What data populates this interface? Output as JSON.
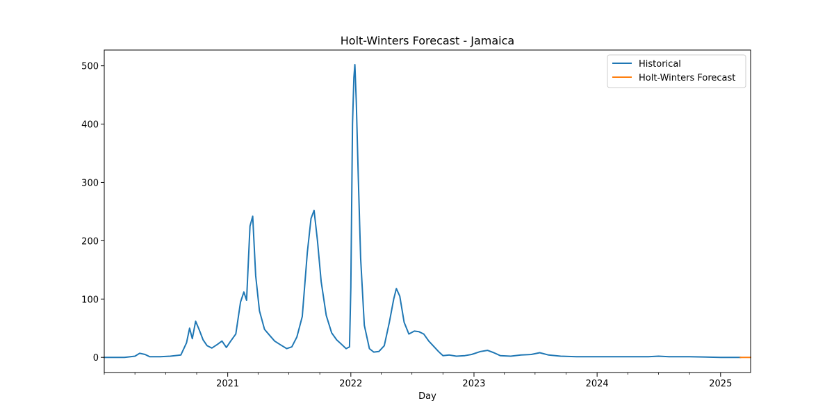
{
  "chart_data": {
    "type": "line",
    "title": "Holt-Winters Forecast - Jamaica",
    "xlabel": "Day",
    "ylabel": "",
    "xlim": [
      "2020-01-01",
      "2025-03-31"
    ],
    "ylim": [
      -26,
      527
    ],
    "x_ticks": [
      {
        "label": "2021",
        "date": "2021-01-01"
      },
      {
        "label": "2022",
        "date": "2022-01-01"
      },
      {
        "label": "2023",
        "date": "2023-01-01"
      },
      {
        "label": "2024",
        "date": "2024-01-01"
      },
      {
        "label": "2025",
        "date": "2025-01-01"
      }
    ],
    "y_ticks": [
      0,
      100,
      200,
      300,
      400,
      500
    ],
    "grid": false,
    "legend_position": "top-right",
    "series": [
      {
        "name": "Historical",
        "color": "#1f77b4",
        "points": [
          [
            "2020-01-01",
            0
          ],
          [
            "2020-02-01",
            0
          ],
          [
            "2020-03-01",
            0
          ],
          [
            "2020-04-01",
            2
          ],
          [
            "2020-04-15",
            7
          ],
          [
            "2020-05-01",
            5
          ],
          [
            "2020-05-15",
            1
          ],
          [
            "2020-06-15",
            1
          ],
          [
            "2020-07-15",
            2
          ],
          [
            "2020-08-15",
            4
          ],
          [
            "2020-09-01",
            25
          ],
          [
            "2020-09-10",
            50
          ],
          [
            "2020-09-18",
            32
          ],
          [
            "2020-09-28",
            62
          ],
          [
            "2020-10-08",
            48
          ],
          [
            "2020-10-20",
            30
          ],
          [
            "2020-11-01",
            20
          ],
          [
            "2020-11-15",
            16
          ],
          [
            "2020-12-01",
            22
          ],
          [
            "2020-12-15",
            28
          ],
          [
            "2020-12-28",
            17
          ],
          [
            "2021-01-10",
            28
          ],
          [
            "2021-01-25",
            40
          ],
          [
            "2021-02-08",
            95
          ],
          [
            "2021-02-18",
            112
          ],
          [
            "2021-02-26",
            98
          ],
          [
            "2021-03-08",
            225
          ],
          [
            "2021-03-16",
            242
          ],
          [
            "2021-03-25",
            140
          ],
          [
            "2021-04-05",
            80
          ],
          [
            "2021-04-20",
            48
          ],
          [
            "2021-05-05",
            38
          ],
          [
            "2021-05-20",
            28
          ],
          [
            "2021-06-05",
            22
          ],
          [
            "2021-06-25",
            15
          ],
          [
            "2021-07-10",
            18
          ],
          [
            "2021-07-25",
            35
          ],
          [
            "2021-08-10",
            70
          ],
          [
            "2021-08-25",
            180
          ],
          [
            "2021-09-05",
            238
          ],
          [
            "2021-09-14",
            252
          ],
          [
            "2021-09-24",
            200
          ],
          [
            "2021-10-05",
            130
          ],
          [
            "2021-10-20",
            72
          ],
          [
            "2021-11-05",
            42
          ],
          [
            "2021-11-20",
            30
          ],
          [
            "2021-12-05",
            22
          ],
          [
            "2021-12-18",
            15
          ],
          [
            "2021-12-28",
            18
          ],
          [
            "2022-01-01",
            120
          ],
          [
            "2022-01-06",
            400
          ],
          [
            "2022-01-10",
            480
          ],
          [
            "2022-01-13",
            502
          ],
          [
            "2022-01-17",
            440
          ],
          [
            "2022-01-23",
            310
          ],
          [
            "2022-01-30",
            170
          ],
          [
            "2022-02-10",
            55
          ],
          [
            "2022-02-25",
            15
          ],
          [
            "2022-03-10",
            9
          ],
          [
            "2022-03-25",
            10
          ],
          [
            "2022-04-10",
            20
          ],
          [
            "2022-04-25",
            60
          ],
          [
            "2022-05-08",
            100
          ],
          [
            "2022-05-16",
            118
          ],
          [
            "2022-05-26",
            105
          ],
          [
            "2022-06-08",
            60
          ],
          [
            "2022-06-22",
            40
          ],
          [
            "2022-07-08",
            45
          ],
          [
            "2022-07-22",
            44
          ],
          [
            "2022-08-05",
            40
          ],
          [
            "2022-08-20",
            28
          ],
          [
            "2022-09-05",
            18
          ],
          [
            "2022-09-18",
            10
          ],
          [
            "2022-10-01",
            3
          ],
          [
            "2022-10-20",
            4
          ],
          [
            "2022-11-10",
            2
          ],
          [
            "2022-12-05",
            3
          ],
          [
            "2022-12-25",
            5
          ],
          [
            "2023-01-20",
            10
          ],
          [
            "2023-02-10",
            12
          ],
          [
            "2023-03-01",
            8
          ],
          [
            "2023-03-20",
            3
          ],
          [
            "2023-04-20",
            2
          ],
          [
            "2023-05-20",
            4
          ],
          [
            "2023-06-20",
            5
          ],
          [
            "2023-07-15",
            8
          ],
          [
            "2023-08-10",
            4
          ],
          [
            "2023-09-15",
            2
          ],
          [
            "2023-11-01",
            1
          ],
          [
            "2023-12-15",
            1
          ],
          [
            "2024-02-01",
            1
          ],
          [
            "2024-04-01",
            1
          ],
          [
            "2024-06-01",
            1
          ],
          [
            "2024-07-01",
            2
          ],
          [
            "2024-08-01",
            1
          ],
          [
            "2024-10-01",
            1
          ],
          [
            "2025-01-01",
            0
          ],
          [
            "2025-03-01",
            0
          ]
        ]
      },
      {
        "name": "Holt-Winters Forecast",
        "color": "#ff7f0e",
        "points": [
          [
            "2025-03-01",
            0
          ],
          [
            "2025-03-31",
            0
          ]
        ]
      }
    ]
  }
}
